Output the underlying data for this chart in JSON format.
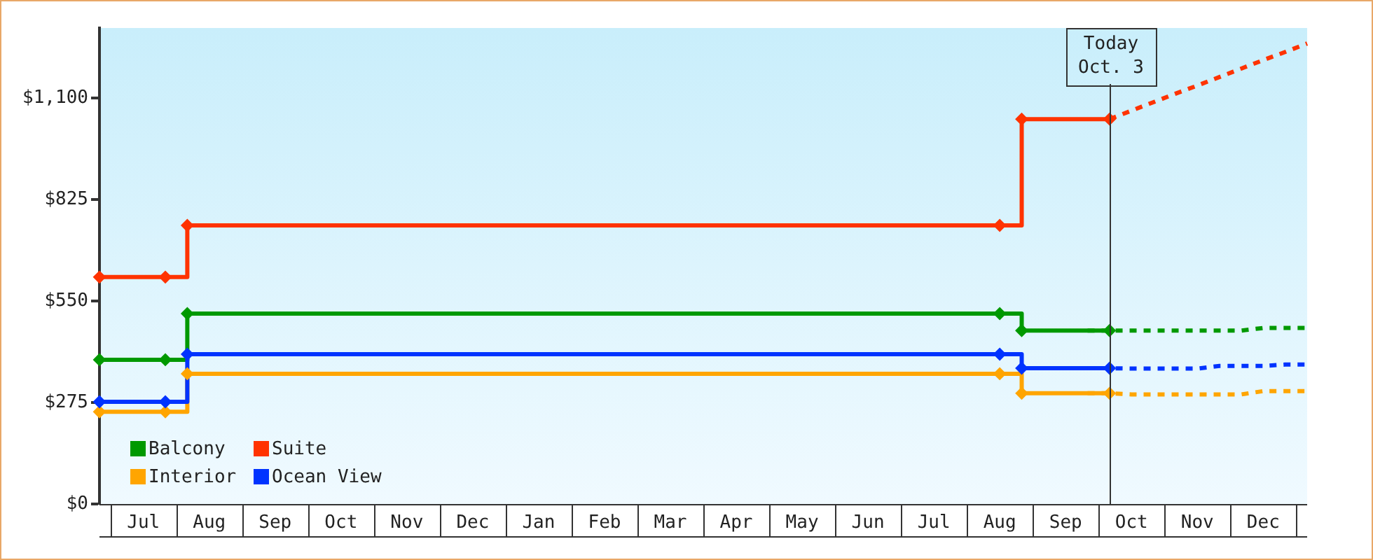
{
  "chart_data": {
    "type": "line",
    "categories": [
      null,
      null,
      "Jul",
      null,
      null,
      "Aug",
      null,
      null,
      "Sep",
      null,
      null,
      "Oct",
      null,
      null,
      "Nov",
      null,
      null,
      "Dec",
      null,
      null,
      "Jan",
      null,
      null,
      "Feb",
      null,
      null,
      "Mar",
      null,
      null,
      "Apr",
      null,
      null,
      "May",
      null,
      null,
      "Jun",
      null,
      null,
      "Jul",
      null,
      null,
      "Aug",
      null,
      null,
      "Sep",
      null,
      null,
      "Oct",
      null,
      null,
      "Nov",
      null,
      null,
      "Dec",
      null,
      null
    ],
    "ylim": [
      0,
      1290
    ],
    "yticks": [
      {
        "value": 0,
        "label": "$0"
      },
      {
        "value": 275,
        "label": "$275"
      },
      {
        "value": 550,
        "label": "$550"
      },
      {
        "value": 825,
        "label": "$825"
      },
      {
        "value": 1100,
        "label": "$1,100"
      }
    ],
    "grid": false,
    "legend": "bottom left",
    "series": [
      {
        "name": "Balcony",
        "type": "step",
        "color": "#009900",
        "line_style": "solid",
        "values": [
          391,
          391,
          391,
          391,
          516,
          516,
          516,
          516,
          516,
          516,
          516,
          516,
          516,
          516,
          516,
          516,
          516,
          516,
          516,
          516,
          516,
          516,
          516,
          516,
          516,
          516,
          516,
          516,
          516,
          516,
          516,
          516,
          516,
          516,
          516,
          516,
          516,
          516,
          516,
          516,
          516,
          516,
          470,
          470,
          470,
          470,
          470,
          null,
          null,
          null,
          null,
          null,
          null,
          null,
          null,
          null
        ]
      },
      {
        "name": "Suite",
        "type": "step",
        "color": "#ff3300",
        "line_style": "solid",
        "values": [
          615,
          615,
          615,
          615,
          755,
          755,
          755,
          755,
          755,
          755,
          755,
          755,
          755,
          755,
          755,
          755,
          755,
          755,
          755,
          755,
          755,
          755,
          755,
          755,
          755,
          755,
          755,
          755,
          755,
          755,
          755,
          755,
          755,
          755,
          755,
          755,
          755,
          755,
          755,
          755,
          755,
          755,
          1043,
          1043,
          1043,
          1043,
          1043,
          null,
          null,
          null,
          null,
          null,
          null,
          null,
          null,
          null
        ]
      },
      {
        "name": "Interior",
        "type": "step",
        "color": "#ffa500",
        "line_style": "solid",
        "values": [
          250,
          250,
          250,
          250,
          353,
          353,
          353,
          353,
          353,
          353,
          353,
          353,
          353,
          353,
          353,
          353,
          353,
          353,
          353,
          353,
          353,
          353,
          353,
          353,
          353,
          353,
          353,
          353,
          353,
          353,
          353,
          353,
          353,
          353,
          353,
          353,
          353,
          353,
          353,
          353,
          353,
          353,
          300,
          300,
          300,
          300,
          300,
          null,
          null,
          null,
          null,
          null,
          null,
          null,
          null,
          null
        ]
      },
      {
        "name": "Ocean View",
        "type": "step",
        "color": "#0033ff",
        "line_style": "solid",
        "values": [
          277,
          277,
          277,
          277,
          406,
          406,
          406,
          406,
          406,
          406,
          406,
          406,
          406,
          406,
          406,
          406,
          406,
          406,
          406,
          406,
          406,
          406,
          406,
          406,
          406,
          406,
          406,
          406,
          406,
          406,
          406,
          406,
          406,
          406,
          406,
          406,
          406,
          406,
          406,
          406,
          406,
          406,
          368,
          368,
          368,
          368,
          368,
          null,
          null,
          null,
          null,
          null,
          null,
          null,
          null,
          null
        ]
      },
      {
        "color": "#009900",
        "marker": "none",
        "line_style": "dashed",
        "values": [
          null,
          null,
          null,
          null,
          null,
          null,
          null,
          null,
          null,
          null,
          null,
          null,
          null,
          null,
          null,
          null,
          null,
          null,
          null,
          null,
          null,
          null,
          null,
          null,
          null,
          null,
          null,
          null,
          null,
          null,
          null,
          null,
          null,
          null,
          null,
          null,
          null,
          null,
          null,
          null,
          null,
          null,
          null,
          null,
          null,
          470,
          470,
          470,
          470,
          470,
          470,
          470,
          470,
          477,
          477,
          477
        ]
      },
      {
        "color": "#ff3300",
        "marker": "none",
        "line_style": "dashed",
        "values": [
          null,
          null,
          null,
          null,
          null,
          null,
          null,
          null,
          null,
          null,
          null,
          null,
          null,
          null,
          null,
          null,
          null,
          null,
          null,
          null,
          null,
          null,
          null,
          null,
          null,
          null,
          null,
          null,
          null,
          null,
          null,
          null,
          null,
          null,
          null,
          null,
          null,
          null,
          null,
          null,
          null,
          null,
          null,
          null,
          null,
          null,
          1043,
          1066,
          1089,
          1112,
          1134,
          1157,
          1180,
          1203,
          1225,
          1248
        ]
      },
      {
        "color": "#ffa500",
        "marker": "none",
        "line_style": "dashed",
        "values": [
          null,
          null,
          null,
          null,
          null,
          null,
          null,
          null,
          null,
          null,
          null,
          null,
          null,
          null,
          null,
          null,
          null,
          null,
          null,
          null,
          null,
          null,
          null,
          null,
          null,
          null,
          null,
          null,
          null,
          null,
          null,
          null,
          null,
          null,
          null,
          null,
          null,
          null,
          null,
          null,
          null,
          null,
          null,
          null,
          null,
          300,
          300,
          297,
          297,
          297,
          297,
          297,
          297,
          306,
          306,
          306
        ]
      },
      {
        "color": "#0033ff",
        "marker": "none",
        "line_style": "dashed",
        "values": [
          null,
          null,
          null,
          null,
          null,
          null,
          null,
          null,
          null,
          null,
          null,
          null,
          null,
          null,
          null,
          null,
          null,
          null,
          null,
          null,
          null,
          null,
          null,
          null,
          null,
          null,
          null,
          null,
          null,
          null,
          null,
          null,
          null,
          null,
          null,
          null,
          null,
          null,
          null,
          null,
          null,
          null,
          null,
          null,
          null,
          368,
          368,
          367,
          367,
          367,
          367,
          374,
          374,
          374,
          378,
          378
        ]
      },
      {
        "type": "scatter",
        "color": "#009900",
        "marker": "diamond",
        "values": [
          391,
          null,
          null,
          391,
          516,
          null,
          null,
          null,
          null,
          null,
          null,
          null,
          null,
          null,
          null,
          null,
          null,
          null,
          null,
          null,
          null,
          null,
          null,
          null,
          null,
          null,
          null,
          null,
          null,
          null,
          null,
          null,
          null,
          null,
          null,
          null,
          null,
          null,
          null,
          null,
          null,
          516,
          470,
          null,
          null,
          null,
          470,
          null,
          null,
          null,
          null,
          null,
          null,
          null,
          null,
          null
        ]
      },
      {
        "type": "scatter",
        "color": "#ff3300",
        "marker": "diamond",
        "values": [
          615,
          null,
          null,
          615,
          755,
          null,
          null,
          null,
          null,
          null,
          null,
          null,
          null,
          null,
          null,
          null,
          null,
          null,
          null,
          null,
          null,
          null,
          null,
          null,
          null,
          null,
          null,
          null,
          null,
          null,
          null,
          null,
          null,
          null,
          null,
          null,
          null,
          null,
          null,
          null,
          null,
          755,
          1043,
          null,
          null,
          null,
          1043,
          null,
          null,
          null,
          null,
          null,
          null,
          null,
          null,
          null
        ]
      },
      {
        "type": "scatter",
        "color": "#ffa500",
        "marker": "diamond",
        "values": [
          250,
          null,
          null,
          250,
          353,
          null,
          null,
          null,
          null,
          null,
          null,
          null,
          null,
          null,
          null,
          null,
          null,
          null,
          null,
          null,
          null,
          null,
          null,
          null,
          null,
          null,
          null,
          null,
          null,
          null,
          null,
          null,
          null,
          null,
          null,
          null,
          null,
          null,
          null,
          null,
          null,
          353,
          300,
          null,
          null,
          null,
          300,
          null,
          null,
          null,
          null,
          null,
          null,
          null,
          null,
          null
        ]
      },
      {
        "type": "scatter",
        "color": "#0033ff",
        "marker": "diamond",
        "values": [
          277,
          null,
          null,
          277,
          406,
          null,
          null,
          null,
          null,
          null,
          null,
          null,
          null,
          null,
          null,
          null,
          null,
          null,
          null,
          null,
          null,
          null,
          null,
          null,
          null,
          null,
          null,
          null,
          null,
          null,
          null,
          null,
          null,
          null,
          null,
          null,
          null,
          null,
          null,
          null,
          null,
          406,
          368,
          null,
          null,
          null,
          368,
          null,
          null,
          null,
          null,
          null,
          null,
          null,
          null,
          null
        ]
      }
    ],
    "annotations": [
      "Today\nOct. 3"
    ]
  }
}
